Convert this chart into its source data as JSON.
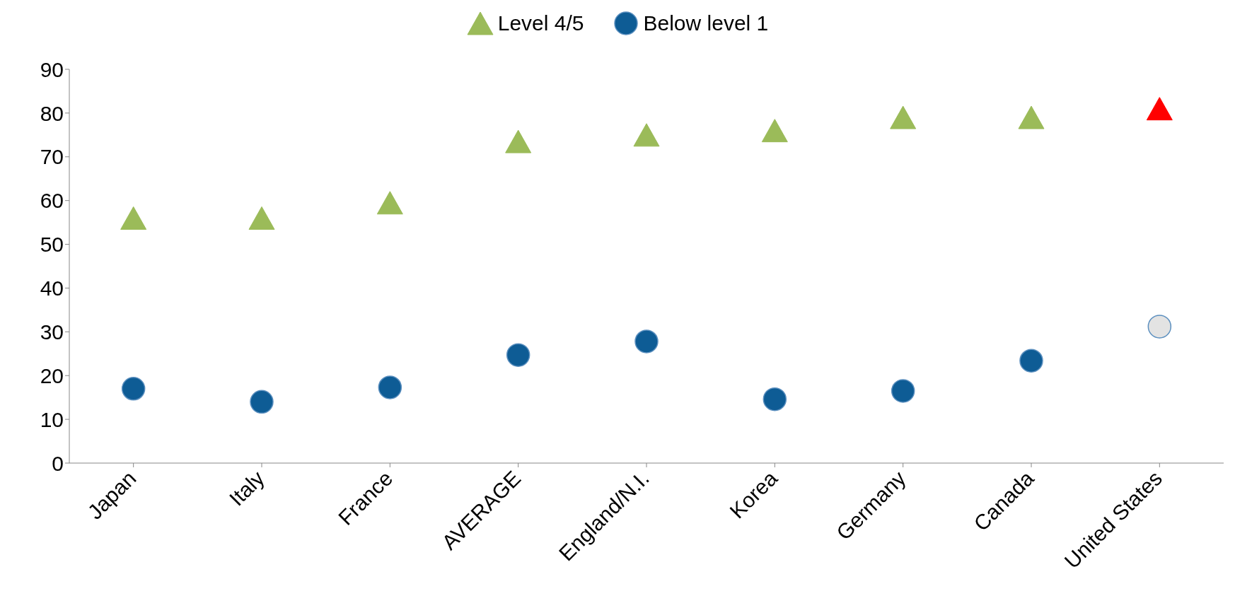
{
  "chart_data": {
    "type": "scatter",
    "categories": [
      "Japan",
      "Italy",
      "France",
      "AVERAGE",
      "England/N.I.",
      "Korea",
      "Germany",
      "Canada",
      "United States"
    ],
    "series": [
      {
        "name": "Level 4/5",
        "color": "#9bbb59",
        "marker": "triangle",
        "colors": [
          "#9bbb59",
          "#9bbb59",
          "#9bbb59",
          "#9bbb59",
          "#9bbb59",
          "#9bbb59",
          "#9bbb59",
          "#9bbb59",
          "#ff0000"
        ],
        "values": [
          56,
          56,
          59.5,
          73.5,
          75,
          76,
          79,
          79,
          81
        ]
      },
      {
        "name": "Below level 1",
        "color": "#0e5c95",
        "marker": "circle",
        "colors": [
          "#0e5c95",
          "#0e5c95",
          "#0e5c95",
          "#0e5c95",
          "#0e5c95",
          "#0e5c95",
          "#0e5c95",
          "#0e5c95",
          "#e3e3e3"
        ],
        "values": [
          17,
          14,
          17.3,
          24.7,
          27.8,
          14.6,
          16.5,
          23.4,
          31.2
        ]
      }
    ],
    "ylim": [
      0,
      90
    ],
    "yticks": [
      0,
      10,
      20,
      30,
      40,
      50,
      60,
      70,
      80,
      90
    ],
    "grid": false,
    "legend": "top"
  }
}
